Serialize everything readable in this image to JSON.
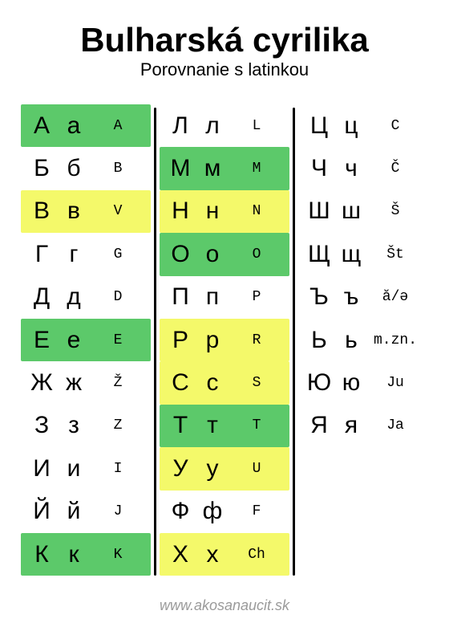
{
  "title": "Bulharská cyrilika",
  "subtitle": "Porovnanie s latinkou",
  "footer": "www.akosanaucit.sk",
  "colors": {
    "green": "#5cc96a",
    "yellow": "#f4f96a",
    "background": "#ffffff",
    "divider": "#000000",
    "footer_text": "#9a9a9a"
  },
  "columns": [
    [
      {
        "up": "А",
        "low": "а",
        "lat": "A",
        "bg": "green"
      },
      {
        "up": "Б",
        "low": "б",
        "lat": "B",
        "bg": "none"
      },
      {
        "up": "В",
        "low": "в",
        "lat": "V",
        "bg": "yellow"
      },
      {
        "up": "Г",
        "low": "г",
        "lat": "G",
        "bg": "none"
      },
      {
        "up": "Д",
        "low": "д",
        "lat": "D",
        "bg": "none"
      },
      {
        "up": "Е",
        "low": "е",
        "lat": "E",
        "bg": "green"
      },
      {
        "up": "Ж",
        "low": "ж",
        "lat": "Ž",
        "bg": "none"
      },
      {
        "up": "З",
        "low": "з",
        "lat": "Z",
        "bg": "none"
      },
      {
        "up": "И",
        "low": "и",
        "lat": "I",
        "bg": "none"
      },
      {
        "up": "Й",
        "low": "й",
        "lat": "J",
        "bg": "none"
      },
      {
        "up": "К",
        "low": "к",
        "lat": "K",
        "bg": "green"
      }
    ],
    [
      {
        "up": "Л",
        "low": "л",
        "lat": "L",
        "bg": "none"
      },
      {
        "up": "М",
        "low": "м",
        "lat": "M",
        "bg": "green"
      },
      {
        "up": "Н",
        "low": "н",
        "lat": "N",
        "bg": "yellow"
      },
      {
        "up": "О",
        "low": "о",
        "lat": "O",
        "bg": "green"
      },
      {
        "up": "П",
        "low": "п",
        "lat": "P",
        "bg": "none"
      },
      {
        "up": "Р",
        "low": "р",
        "lat": "R",
        "bg": "yellow"
      },
      {
        "up": "С",
        "low": "с",
        "lat": "S",
        "bg": "yellow"
      },
      {
        "up": "Т",
        "low": "т",
        "lat": "T",
        "bg": "green"
      },
      {
        "up": "У",
        "low": "у",
        "lat": "U",
        "bg": "yellow"
      },
      {
        "up": "Ф",
        "low": "ф",
        "lat": "F",
        "bg": "none"
      },
      {
        "up": "Х",
        "low": "х",
        "lat": "Ch",
        "bg": "yellow"
      }
    ],
    [
      {
        "up": "Ц",
        "low": "ц",
        "lat": "C",
        "bg": "none"
      },
      {
        "up": "Ч",
        "low": "ч",
        "lat": "Č",
        "bg": "none"
      },
      {
        "up": "Ш",
        "low": "ш",
        "lat": "Š",
        "bg": "none"
      },
      {
        "up": "Щ",
        "low": "щ",
        "lat": "Št",
        "bg": "none"
      },
      {
        "up": "Ъ",
        "low": "ъ",
        "lat": "ă/ə",
        "bg": "none"
      },
      {
        "up": "Ь",
        "low": "ь",
        "lat": "m.zn.",
        "bg": "none"
      },
      {
        "up": "Ю",
        "low": "ю",
        "lat": "Ju",
        "bg": "none"
      },
      {
        "up": "Я",
        "low": "я",
        "lat": "Ja",
        "bg": "none"
      },
      {
        "empty": true
      },
      {
        "empty": true
      },
      {
        "empty": true
      }
    ]
  ]
}
